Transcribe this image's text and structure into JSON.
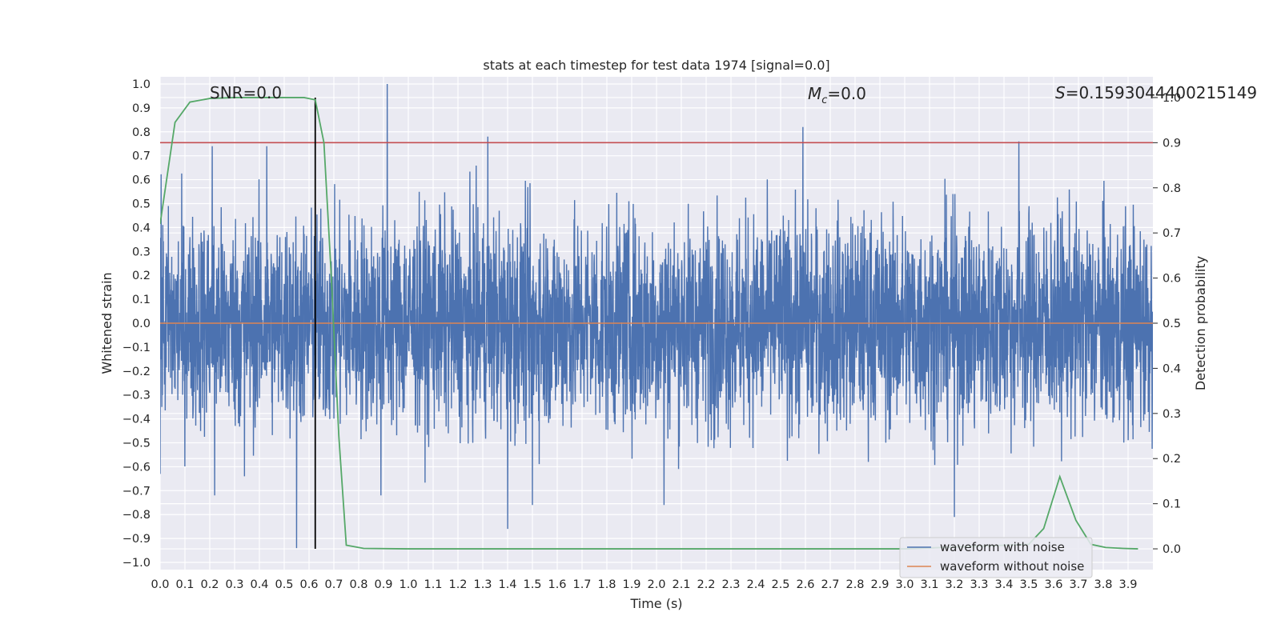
{
  "chart_data": {
    "type": "line",
    "title": "stats at each timestep for test data 1974 [signal=0.0]",
    "xlabel": "Time (s)",
    "ylabel": "Whitened strain",
    "y2label": "Detection probability",
    "xlim": [
      0.0,
      4.0
    ],
    "ylim": [
      -1.03,
      1.03
    ],
    "y2lim": [
      -0.046,
      1.046
    ],
    "xticks": [
      0.0,
      0.1,
      0.2,
      0.3,
      0.4,
      0.5,
      0.6,
      0.7,
      0.8,
      0.9,
      1.0,
      1.1,
      1.2,
      1.3,
      1.4,
      1.5,
      1.6,
      1.7,
      1.8,
      1.9,
      2.0,
      2.1,
      2.2,
      2.3,
      2.4,
      2.5,
      2.6,
      2.7,
      2.8,
      2.9,
      3.0,
      3.1,
      3.2,
      3.3,
      3.4,
      3.5,
      3.6,
      3.7,
      3.8,
      3.9
    ],
    "xtick_labels": [
      "0.0",
      "0.1",
      "0.2",
      "0.3",
      "0.4",
      "0.5",
      "0.6",
      "0.7",
      "0.8",
      "0.9",
      "1.0",
      "1.1",
      "1.2",
      "1.3",
      "1.4",
      "1.5",
      "1.6",
      "1.7",
      "1.8",
      "1.9",
      "2.0",
      "2.1",
      "2.2",
      "2.3",
      "2.4",
      "2.5",
      "2.6",
      "2.7",
      "2.8",
      "2.9",
      "3.0",
      "3.1",
      "3.2",
      "3.3",
      "3.4",
      "3.5",
      "3.6",
      "3.7",
      "3.8",
      "3.9"
    ],
    "yticks": [
      1.0,
      0.9,
      0.8,
      0.7,
      0.6,
      0.5,
      0.4,
      0.3,
      0.2,
      0.1,
      0.0,
      -0.1,
      -0.2,
      -0.3,
      -0.4,
      -0.5,
      -0.6,
      -0.7,
      -0.8,
      -0.9,
      -1.0
    ],
    "ytick_labels": [
      "1.0",
      "0.9",
      "0.8",
      "0.7",
      "0.6",
      "0.5",
      "0.4",
      "0.3",
      "0.2",
      "0.1",
      "0.0",
      "−0.1",
      "−0.2",
      "−0.3",
      "−0.4",
      "−0.5",
      "−0.6",
      "−0.7",
      "−0.8",
      "−0.9",
      "−1.0"
    ],
    "y2ticks": [
      1.0,
      0.9,
      0.8,
      0.7,
      0.6,
      0.5,
      0.4,
      0.3,
      0.2,
      0.1,
      0.0
    ],
    "y2tick_labels": [
      "1.0",
      "0.9",
      "0.8",
      "0.7",
      "0.6",
      "0.5",
      "0.4",
      "0.3",
      "0.2",
      "0.1",
      "0.0"
    ],
    "grid": true,
    "series": [
      {
        "name": "waveform with noise",
        "axis": "left",
        "color": "#4c72b0",
        "description": "dense noise trace, approx 4096 samples over 0-4 s",
        "sample_count": 4096,
        "envelope_max": 1.0,
        "envelope_min": -0.94,
        "typical_amplitude": 0.4,
        "peaks": [
          {
            "x": 0.915,
            "y": 1.0
          },
          {
            "x": 2.59,
            "y": 0.82
          },
          {
            "x": 0.55,
            "y": -0.94
          },
          {
            "x": 0.21,
            "y": 0.74
          },
          {
            "x": 0.43,
            "y": 0.74
          },
          {
            "x": 1.32,
            "y": 0.78
          },
          {
            "x": 3.46,
            "y": 0.76
          },
          {
            "x": 1.4,
            "y": -0.86
          },
          {
            "x": 3.2,
            "y": -0.81
          },
          {
            "x": 2.03,
            "y": -0.76
          },
          {
            "x": 0.22,
            "y": -0.72
          },
          {
            "x": 0.89,
            "y": -0.72
          },
          {
            "x": 1.5,
            "y": -0.76
          },
          {
            "x": 0.0,
            "y": -0.63
          },
          {
            "x": 0.34,
            "y": -0.64
          }
        ]
      },
      {
        "name": "waveform without noise",
        "axis": "left",
        "color": "#dd8452",
        "x": [
          0.0,
          4.0
        ],
        "y": [
          0.0,
          0.0
        ]
      },
      {
        "name": "detection probability",
        "axis": "right",
        "color": "#55a868",
        "x": [
          0.0,
          0.06,
          0.12,
          0.2,
          0.3,
          0.4,
          0.5,
          0.58,
          0.625,
          0.66,
          0.69,
          0.72,
          0.75,
          0.82,
          1.0,
          2.0,
          3.0,
          3.5,
          3.56,
          3.625,
          3.69,
          3.75,
          3.81,
          3.88,
          3.94
        ],
        "y": [
          0.72,
          0.945,
          0.99,
          0.998,
          1.0,
          1.0,
          1.0,
          1.0,
          0.995,
          0.9,
          0.6,
          0.25,
          0.008,
          0.001,
          0.0,
          0.0,
          0.0,
          0.01,
          0.045,
          0.16,
          0.063,
          0.01,
          0.003,
          0.001,
          0.0
        ]
      }
    ],
    "hlines": [
      {
        "axis": "right",
        "y": 0.9,
        "color": "#c44e52"
      }
    ],
    "vlines": [
      {
        "axis": "right",
        "x": 0.625,
        "ymin": 0.0,
        "ymax": 1.0,
        "color": "#000000"
      }
    ],
    "annotations": [
      {
        "id": "snr",
        "text": "SNR=0.0"
      },
      {
        "id": "mc",
        "text_prefix": "M",
        "subscript": "c",
        "text_suffix": "=0.0"
      },
      {
        "id": "s",
        "text_prefix": "S",
        "text_suffix": "=0.1593044400215149"
      }
    ],
    "legend": {
      "position": "lower-right",
      "entries": [
        {
          "label": "waveform with noise",
          "color": "#4c72b0"
        },
        {
          "label": "waveform without noise",
          "color": "#dd8452"
        }
      ]
    },
    "colors": {
      "axes_bg": "#eaeaf2",
      "grid": "#ffffff",
      "text": "#262626"
    }
  }
}
